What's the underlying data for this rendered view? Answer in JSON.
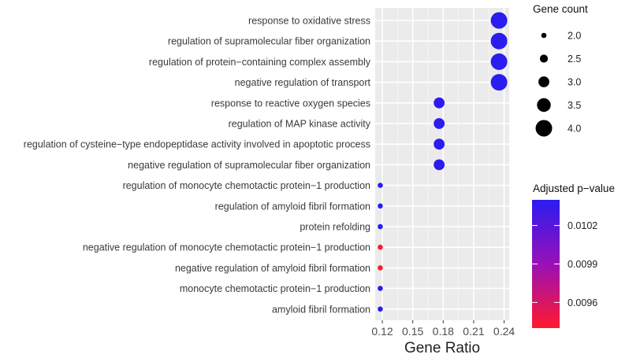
{
  "chart_data": {
    "type": "scatter",
    "title": "",
    "xlabel": "Gene Ratio",
    "ylabel": "",
    "xlim": [
      0.113,
      0.245
    ],
    "x_ticks": [
      "0.12",
      "0.15",
      "0.18",
      "0.21",
      "0.24"
    ],
    "x_tick_values": [
      0.12,
      0.15,
      0.18,
      0.21,
      0.24
    ],
    "categories": [
      "response to oxidative stress",
      "regulation of supramolecular fiber organization",
      "regulation of protein−containing complex assembly",
      "negative regulation of transport",
      "response to reactive oxygen species",
      "regulation of MAP kinase activity",
      "regulation of cysteine−type endopeptidase activity involved in apoptotic process",
      "negative regulation of supramolecular fiber organization",
      "regulation of monocyte chemotactic protein−1 production",
      "regulation of amyloid fibril formation",
      "protein refolding",
      "negative regulation of monocyte chemotactic protein−1 production",
      "negative regulation of amyloid fibril formation",
      "monocyte chemotactic protein−1 production",
      "amyloid fibril formation"
    ],
    "points": [
      {
        "term": "response to oxidative stress",
        "gene_ratio": 0.235,
        "count": 4,
        "p_adjust": 0.0104
      },
      {
        "term": "regulation of supramolecular fiber organization",
        "gene_ratio": 0.235,
        "count": 4,
        "p_adjust": 0.0104
      },
      {
        "term": "regulation of protein−containing complex assembly",
        "gene_ratio": 0.235,
        "count": 4,
        "p_adjust": 0.0104
      },
      {
        "term": "negative regulation of transport",
        "gene_ratio": 0.235,
        "count": 4,
        "p_adjust": 0.0104
      },
      {
        "term": "response to reactive oxygen species",
        "gene_ratio": 0.176,
        "count": 3,
        "p_adjust": 0.0104
      },
      {
        "term": "regulation of MAP kinase activity",
        "gene_ratio": 0.176,
        "count": 3,
        "p_adjust": 0.0104
      },
      {
        "term": "regulation of cysteine−type endopeptidase activity involved in apoptotic process",
        "gene_ratio": 0.176,
        "count": 3,
        "p_adjust": 0.0104
      },
      {
        "term": "negative regulation of supramolecular fiber organization",
        "gene_ratio": 0.176,
        "count": 3,
        "p_adjust": 0.0104
      },
      {
        "term": "regulation of monocyte chemotactic protein−1 production",
        "gene_ratio": 0.118,
        "count": 2,
        "p_adjust": 0.0104
      },
      {
        "term": "regulation of amyloid fibril formation",
        "gene_ratio": 0.118,
        "count": 2,
        "p_adjust": 0.0104
      },
      {
        "term": "protein refolding",
        "gene_ratio": 0.118,
        "count": 2,
        "p_adjust": 0.0104
      },
      {
        "term": "negative regulation of monocyte chemotactic protein−1 production",
        "gene_ratio": 0.118,
        "count": 2,
        "p_adjust": 0.0094
      },
      {
        "term": "negative regulation of amyloid fibril formation",
        "gene_ratio": 0.118,
        "count": 2,
        "p_adjust": 0.0094
      },
      {
        "term": "monocyte chemotactic protein−1 production",
        "gene_ratio": 0.118,
        "count": 2,
        "p_adjust": 0.0104
      },
      {
        "term": "amyloid fibril formation",
        "gene_ratio": 0.118,
        "count": 2,
        "p_adjust": 0.0104
      }
    ],
    "size_legend": {
      "title": "Gene count",
      "values": [
        2.0,
        2.5,
        3.0,
        3.5,
        4.0
      ],
      "labels": [
        "2.0",
        "2.5",
        "3.0",
        "3.5",
        "4.0"
      ]
    },
    "color_legend": {
      "title": "Adjusted p−value",
      "range": [
        0.0094,
        0.0104
      ],
      "ticks": [
        0.0102,
        0.0099,
        0.0096
      ],
      "tick_labels": [
        "0.0102",
        "0.0099",
        "0.0096"
      ],
      "high_color": "#2b1cf0",
      "low_color": "#ff1a2e"
    },
    "grid": true,
    "legend_position": "right",
    "panel_background": "#ebebeb"
  }
}
